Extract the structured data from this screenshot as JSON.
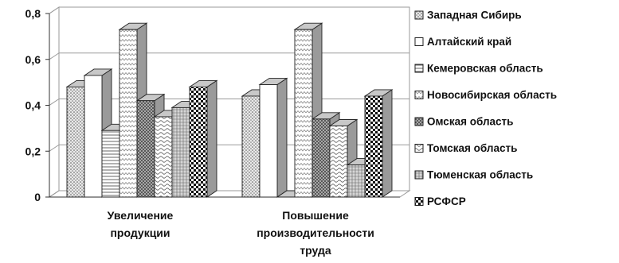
{
  "chart_data": {
    "type": "bar",
    "categories": [
      [
        "Увеличение",
        "продукции"
      ],
      [
        "Повышение",
        "производительности",
        "труда"
      ]
    ],
    "series": [
      {
        "name": "Западная  Сибирь",
        "values": [
          0.48,
          0.44
        ],
        "pattern": "dots"
      },
      {
        "name": "Алтайский край",
        "values": [
          0.53,
          0.49
        ],
        "pattern": "none"
      },
      {
        "name": "Кемеровская область",
        "values": [
          0.29,
          0.0
        ],
        "pattern": "hlines"
      },
      {
        "name": "Новосибирская область",
        "values": [
          0.73,
          0.73
        ],
        "pattern": "zigzag"
      },
      {
        "name": "Омская область",
        "values": [
          0.42,
          0.34
        ],
        "pattern": "crosshatch"
      },
      {
        "name": "Томская область",
        "values": [
          0.35,
          0.31
        ],
        "pattern": "wave"
      },
      {
        "name": "Тюменская область",
        "values": [
          0.39,
          0.14
        ],
        "pattern": "grid"
      },
      {
        "name": "РСФСР",
        "values": [
          0.48,
          0.44
        ],
        "pattern": "checker"
      }
    ],
    "yticks": [
      "0",
      "0,2",
      "0,4",
      "0,6",
      "0,8"
    ],
    "ylim": [
      0,
      0.8
    ],
    "grid": true,
    "legend": "right",
    "colors": {
      "fill": "#ffffff",
      "stroke": "#222222",
      "grid": "#9a9a9a",
      "axis": "#333333"
    }
  }
}
